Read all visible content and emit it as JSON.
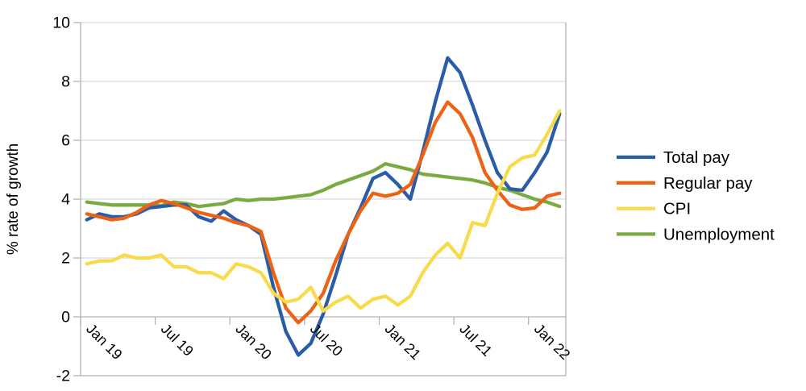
{
  "chart_data": {
    "type": "line",
    "title": "",
    "xlabel": "",
    "ylabel": "% rate of growth",
    "ylim": [
      -2,
      10
    ],
    "yticks": [
      -2,
      0,
      2,
      4,
      6,
      8,
      10
    ],
    "ytick_labels": [
      "-2",
      "0",
      "2",
      "4",
      "6",
      "8",
      "10"
    ],
    "xtick_labels": [
      "Jan 19",
      "Jul 19",
      "Jan 20",
      "Jul 20",
      "Jan 21",
      "Jul 21",
      "Jan 22"
    ],
    "x_frequency": "monthly",
    "points_per_xtick": 6,
    "grid": "horizontal",
    "legend_position": "right",
    "grid_color": "#d9d9d9",
    "axis_color": "#b3b3b3",
    "series": [
      {
        "name": "Total pay",
        "color": "#2A5CA8",
        "values": [
          3.3,
          3.5,
          3.4,
          3.4,
          3.5,
          3.7,
          3.75,
          3.8,
          3.8,
          3.4,
          3.25,
          3.6,
          3.3,
          3.1,
          2.8,
          1.0,
          -0.5,
          -1.3,
          -0.9,
          0.1,
          1.4,
          2.8,
          3.7,
          4.7,
          4.9,
          4.5,
          4.0,
          5.6,
          7.3,
          8.8,
          8.3,
          7.2,
          6.0,
          4.9,
          4.35,
          4.3,
          4.9,
          5.6,
          6.9
        ]
      },
      {
        "name": "Regular pay",
        "color": "#ED6316",
        "values": [
          3.5,
          3.4,
          3.3,
          3.35,
          3.55,
          3.8,
          3.95,
          3.85,
          3.7,
          3.55,
          3.45,
          3.35,
          3.2,
          3.1,
          2.9,
          1.5,
          0.3,
          -0.2,
          0.2,
          0.8,
          1.9,
          2.8,
          3.6,
          4.2,
          4.1,
          4.2,
          4.5,
          5.5,
          6.6,
          7.3,
          6.9,
          6.1,
          4.9,
          4.3,
          3.8,
          3.65,
          3.7,
          4.1,
          4.2
        ]
      },
      {
        "name": "CPI",
        "color": "#F8DB4B",
        "values": [
          1.8,
          1.9,
          1.9,
          2.1,
          2.0,
          2.0,
          2.1,
          1.7,
          1.7,
          1.5,
          1.5,
          1.3,
          1.8,
          1.7,
          1.5,
          0.8,
          0.5,
          0.6,
          1.0,
          0.2,
          0.5,
          0.7,
          0.3,
          0.6,
          0.7,
          0.4,
          0.7,
          1.5,
          2.1,
          2.5,
          2.0,
          3.2,
          3.1,
          4.2,
          5.1,
          5.4,
          5.5,
          6.2,
          7.0
        ]
      },
      {
        "name": "Unemployment",
        "color": "#7CAA42",
        "values": [
          3.9,
          3.85,
          3.8,
          3.8,
          3.8,
          3.8,
          3.78,
          3.9,
          3.85,
          3.75,
          3.8,
          3.85,
          4.0,
          3.95,
          4.0,
          4.0,
          4.05,
          4.1,
          4.15,
          4.3,
          4.5,
          4.65,
          4.8,
          4.95,
          5.2,
          5.1,
          5.0,
          4.85,
          4.8,
          4.75,
          4.7,
          4.65,
          4.55,
          4.4,
          4.3,
          4.15,
          4.0,
          3.9,
          3.75
        ]
      }
    ]
  }
}
